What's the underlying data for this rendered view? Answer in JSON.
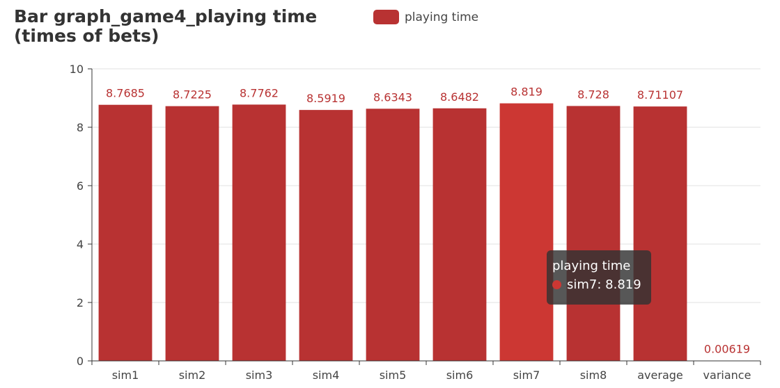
{
  "title_lines": [
    "Bar graph_game4_playing time",
    "(times of bets)"
  ],
  "colors": {
    "bar": "#b83232",
    "bar_highlight": "#cc3733",
    "label": "#b83232",
    "axis": "#333333",
    "grid": "#e0e0e0"
  },
  "tooltip": {
    "title": "playing time",
    "row": "sim7: 8.819"
  },
  "chart_data": {
    "type": "bar",
    "title": "Bar graph_game4_playing time (times of bets)",
    "categories": [
      "sim1",
      "sim2",
      "sim3",
      "sim4",
      "sim5",
      "sim6",
      "sim7",
      "sim8",
      "average",
      "variance"
    ],
    "series": [
      {
        "name": "playing time",
        "values": [
          8.7685,
          8.7225,
          8.7762,
          8.5919,
          8.6343,
          8.6482,
          8.819,
          8.728,
          8.71107,
          0.00619
        ],
        "labels": [
          "8.7685",
          "8.7225",
          "8.7762",
          "8.5919",
          "8.6343",
          "8.6482",
          "8.819",
          "8.728",
          "8.71107",
          "0.00619"
        ]
      }
    ],
    "ylim": [
      0,
      10
    ],
    "yticks": [
      "0",
      "2",
      "4",
      "6",
      "8",
      "10"
    ],
    "highlight": "sim7",
    "grid": true,
    "legend": "top"
  }
}
